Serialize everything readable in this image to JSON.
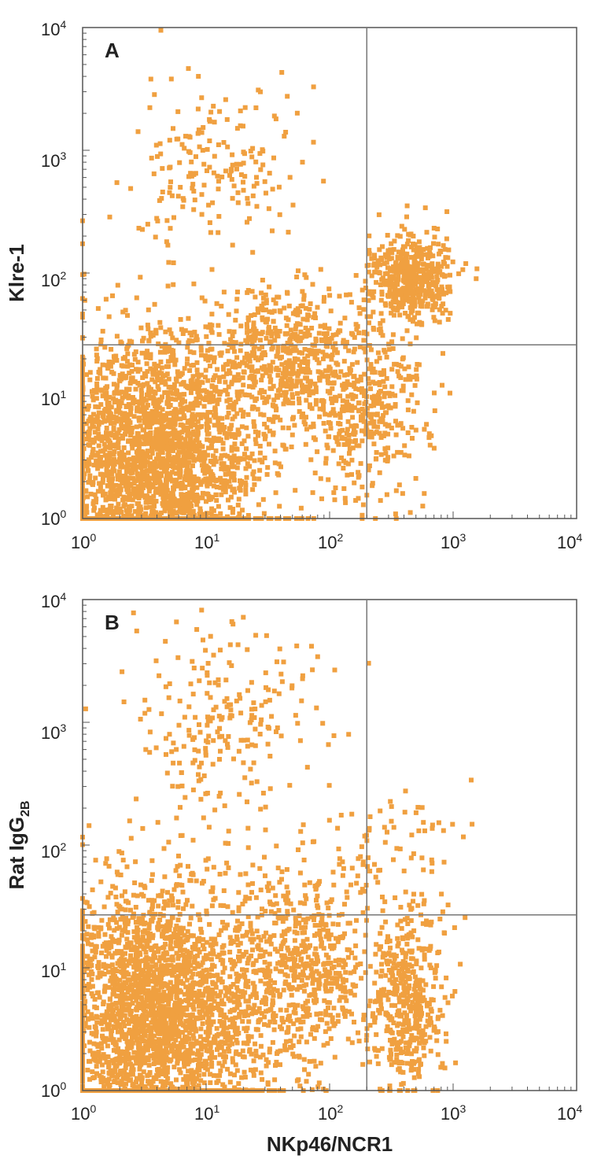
{
  "chart_data": [
    {
      "type": "scatter",
      "panel_label": "A",
      "xlabel": "",
      "ylabel": "Klre-1",
      "xscale": "log",
      "yscale": "log",
      "xlim": [
        1,
        10000
      ],
      "ylim": [
        1,
        10000
      ],
      "x_tick_labels": [
        {
          "base": "10",
          "exp": "0"
        },
        {
          "base": "10",
          "exp": "1"
        },
        {
          "base": "10",
          "exp": "2"
        },
        {
          "base": "10",
          "exp": "3"
        },
        {
          "base": "10",
          "exp": "4"
        }
      ],
      "y_tick_labels": [
        {
          "base": "10",
          "exp": "0"
        },
        {
          "base": "10",
          "exp": "1"
        },
        {
          "base": "10",
          "exp": "2"
        },
        {
          "base": "10",
          "exp": "3"
        },
        {
          "base": "10",
          "exp": "4"
        }
      ],
      "quadrant_gate": {
        "x": 200,
        "y": 26
      },
      "dot_color": "#f0a040",
      "populations": [
        {
          "cx": 4,
          "cy": 3,
          "sx": 0.42,
          "sy": 0.52,
          "n": 2600
        },
        {
          "cx": 40,
          "cy": 20,
          "sx": 0.3,
          "sy": 0.3,
          "n": 600
        },
        {
          "cx": 450,
          "cy": 90,
          "sx": 0.17,
          "sy": 0.18,
          "n": 500
        },
        {
          "cx": 200,
          "cy": 8,
          "sx": 0.25,
          "sy": 0.35,
          "n": 400
        },
        {
          "cx": 12,
          "cy": 800,
          "sx": 0.35,
          "sy": 0.35,
          "n": 180
        }
      ]
    },
    {
      "type": "scatter",
      "panel_label": "B",
      "xlabel": "NKp46/NCR1",
      "ylabel_main": "Rat IgG",
      "ylabel_sub": "2B",
      "xscale": "log",
      "yscale": "log",
      "xlim": [
        1,
        10000
      ],
      "ylim": [
        1,
        10000
      ],
      "x_tick_labels": [
        {
          "base": "10",
          "exp": "0"
        },
        {
          "base": "10",
          "exp": "1"
        },
        {
          "base": "10",
          "exp": "2"
        },
        {
          "base": "10",
          "exp": "3"
        },
        {
          "base": "10",
          "exp": "4"
        }
      ],
      "y_tick_labels": [
        {
          "base": "10",
          "exp": "0"
        },
        {
          "base": "10",
          "exp": "1"
        },
        {
          "base": "10",
          "exp": "2"
        },
        {
          "base": "10",
          "exp": "3"
        },
        {
          "base": "10",
          "exp": "4"
        }
      ],
      "quadrant_gate": {
        "x": 200,
        "y": 27
      },
      "dot_color": "#f0a040",
      "populations": [
        {
          "cx": 4,
          "cy": 4,
          "sx": 0.42,
          "sy": 0.55,
          "n": 2700
        },
        {
          "cx": 60,
          "cy": 10,
          "sx": 0.3,
          "sy": 0.35,
          "n": 600
        },
        {
          "cx": 420,
          "cy": 5,
          "sx": 0.15,
          "sy": 0.35,
          "n": 450
        },
        {
          "cx": 15,
          "cy": 900,
          "sx": 0.35,
          "sy": 0.4,
          "n": 220
        },
        {
          "cx": 300,
          "cy": 80,
          "sx": 0.35,
          "sy": 0.3,
          "n": 90
        }
      ]
    }
  ]
}
